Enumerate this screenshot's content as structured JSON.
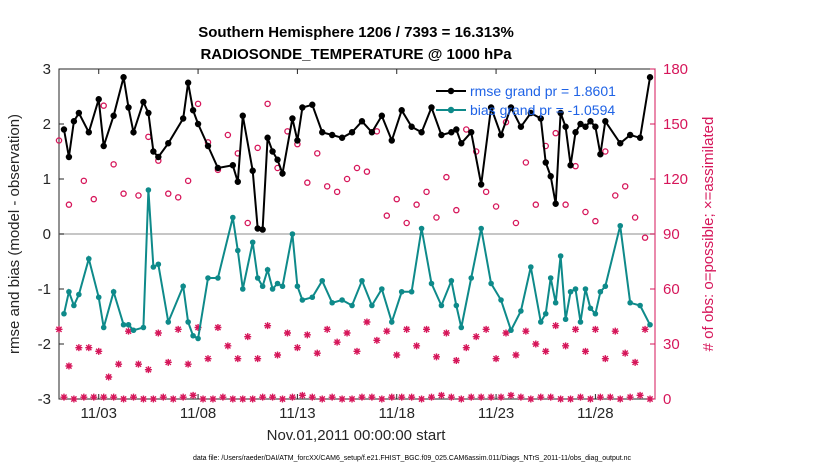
{
  "chart_data": {
    "type": "line",
    "title_line1": "Southern Hemisphere 1206 / 7393 = 16.313%",
    "title_line2": "RADIOSONDE_TEMPERATURE @ 1000 hPa",
    "ylabel": "rmse and bias (model - observation)",
    "ylabel_right": "# of obs: o=possible; ×=assimilated",
    "xlabel": "Nov.01,2011 00:00:00 start",
    "footnote": "data file: /Users/raeder/DAI/ATM_forcXX/CAM6_setup/f.e21.FHIST_BGC.f09_025.CAM6assim.011/Diags_NTrS_2011-11/obs_diag_output.nc",
    "xlim": [
      1.0,
      31.0
    ],
    "ylim": [
      -3,
      3
    ],
    "ylim_right": [
      0,
      180
    ],
    "xticks": [
      3,
      8,
      13,
      18,
      23,
      28
    ],
    "xtick_labels": [
      "11/03",
      "11/08",
      "11/13",
      "11/18",
      "11/23",
      "11/28"
    ],
    "yticks": [
      -3,
      -2,
      -1,
      0,
      1,
      2,
      3
    ],
    "ytick_labels": [
      "-3",
      "-2",
      "-1",
      "0",
      "1",
      "2",
      "3"
    ],
    "yticks_right": [
      0,
      30,
      60,
      90,
      120,
      150,
      180
    ],
    "ytick_labels_right": [
      "0",
      "30",
      "60",
      "90",
      "120",
      "150",
      "180"
    ],
    "colors": {
      "rmse": "#000000",
      "bias": "#0e8a8a",
      "obs": "#d6165a",
      "legend_text": "#1f63e6",
      "zero_line": "#b4b4b4"
    },
    "series": [
      {
        "name": "rmse grand pr = 1.8601",
        "key": "rmse",
        "x": [
          1.25,
          1.5,
          1.75,
          2.0,
          2.5,
          3.0,
          3.25,
          3.75,
          4.25,
          4.5,
          4.75,
          5.25,
          5.5,
          5.75,
          6.0,
          6.5,
          7.25,
          7.5,
          7.75,
          8.0,
          8.5,
          9.0,
          9.75,
          10.0,
          10.25,
          10.75,
          11.0,
          11.25,
          11.5,
          11.75,
          12.0,
          12.25,
          12.75,
          13.0,
          13.25,
          13.75,
          14.25,
          14.75,
          15.25,
          15.75,
          16.25,
          16.75,
          17.25,
          17.75,
          18.25,
          18.75,
          19.25,
          19.75,
          20.25,
          20.75,
          21.0,
          21.25,
          21.75,
          22.25,
          22.75,
          23.25,
          23.75,
          24.25,
          24.75,
          25.25,
          25.5,
          25.75,
          26.0,
          26.25,
          26.5,
          26.75,
          27.0,
          27.25,
          27.5,
          27.75,
          28.0,
          28.25,
          28.5,
          29.25,
          29.75,
          30.25,
          30.75
        ],
        "values": [
          1.9,
          1.4,
          2.05,
          2.2,
          1.85,
          2.45,
          1.6,
          2.15,
          2.85,
          2.3,
          1.85,
          2.4,
          2.2,
          1.5,
          1.4,
          1.65,
          2.1,
          2.75,
          2.25,
          2.0,
          1.6,
          1.2,
          1.25,
          0.95,
          2.15,
          1.15,
          0.1,
          0.08,
          1.75,
          1.5,
          1.35,
          1.1,
          2.1,
          1.7,
          2.3,
          2.35,
          1.85,
          1.8,
          1.75,
          1.85,
          2.05,
          1.85,
          2.15,
          1.7,
          2.25,
          1.95,
          1.85,
          2.3,
          1.8,
          1.85,
          1.9,
          1.65,
          1.85,
          0.9,
          2.3,
          1.8,
          2.3,
          1.95,
          2.2,
          2.1,
          1.3,
          1.05,
          0.55,
          2.2,
          1.95,
          1.25,
          1.85,
          2.0,
          1.95,
          2.05,
          1.95,
          1.45,
          2.05,
          1.65,
          1.8,
          1.75,
          2.85
        ]
      },
      {
        "name": "bias grand pr = -1.0594",
        "key": "bias",
        "x": [
          1.25,
          1.5,
          1.75,
          2.0,
          2.5,
          3.0,
          3.25,
          3.75,
          4.25,
          4.5,
          4.75,
          5.25,
          5.5,
          5.75,
          6.0,
          6.5,
          7.25,
          7.5,
          7.75,
          8.0,
          8.5,
          9.0,
          9.75,
          10.0,
          10.25,
          10.75,
          11.0,
          11.25,
          11.5,
          11.75,
          12.0,
          12.25,
          12.75,
          13.0,
          13.25,
          13.75,
          14.25,
          14.75,
          15.25,
          15.75,
          16.25,
          16.75,
          17.25,
          17.75,
          18.25,
          18.75,
          19.25,
          19.75,
          20.25,
          20.75,
          21.0,
          21.25,
          21.75,
          22.25,
          22.75,
          23.25,
          23.75,
          24.25,
          24.75,
          25.25,
          25.5,
          25.75,
          26.0,
          26.25,
          26.5,
          26.75,
          27.0,
          27.25,
          27.5,
          27.75,
          28.0,
          28.25,
          28.5,
          29.25,
          29.75,
          30.25,
          30.75
        ],
        "values": [
          -1.45,
          -1.05,
          -1.3,
          -1.1,
          -0.45,
          -1.15,
          -1.7,
          -1.05,
          -1.65,
          -1.65,
          -1.75,
          -1.7,
          0.8,
          -0.6,
          -0.55,
          -1.6,
          -0.95,
          -1.6,
          -1.85,
          -1.9,
          -0.8,
          -0.8,
          0.3,
          -0.3,
          -1.0,
          -0.15,
          -0.8,
          -0.95,
          -0.65,
          -1.0,
          -0.9,
          -0.95,
          0.0,
          -0.95,
          -1.2,
          -1.15,
          -0.85,
          -1.25,
          -1.2,
          -1.3,
          -0.85,
          -1.3,
          -1.0,
          -1.6,
          -1.05,
          -1.05,
          0.1,
          -0.9,
          -1.3,
          -0.85,
          -1.3,
          -1.7,
          -0.8,
          0.1,
          -0.9,
          -1.2,
          -1.75,
          -1.4,
          -0.6,
          -1.6,
          -1.45,
          -0.8,
          -1.25,
          -0.4,
          -1.55,
          -1.05,
          -1.0,
          -1.6,
          -1.0,
          -1.35,
          -1.45,
          -1.05,
          -0.95,
          0.15,
          -1.25,
          -1.3,
          -1.65
        ]
      }
    ],
    "obs_possible": {
      "x": [
        1.0,
        1.5,
        2.25,
        2.75,
        3.25,
        3.75,
        4.25,
        5.0,
        5.5,
        6.0,
        6.5,
        7.0,
        7.5,
        8.0,
        8.5,
        9.0,
        9.5,
        10.0,
        10.5,
        11.0,
        11.5,
        12.0,
        12.5,
        13.0,
        13.5,
        14.0,
        14.5,
        15.0,
        15.5,
        16.0,
        16.5,
        17.0,
        17.5,
        18.0,
        18.5,
        19.0,
        19.5,
        20.0,
        20.5,
        21.0,
        21.5,
        22.0,
        22.5,
        23.0,
        23.5,
        24.0,
        24.5,
        25.0,
        25.5,
        26.0,
        26.5,
        27.0,
        27.5,
        28.0,
        28.5,
        29.0,
        29.5,
        30.0,
        30.5
      ],
      "values": [
        141,
        106,
        119,
        109,
        160,
        128,
        112,
        111,
        143,
        130,
        112,
        110,
        119,
        161,
        140,
        125,
        144,
        134,
        96,
        137,
        161,
        126,
        146,
        139,
        118,
        134,
        116,
        113,
        120,
        126,
        124,
        146,
        100,
        109,
        96,
        106,
        113,
        99,
        121,
        103,
        147,
        135,
        113,
        105,
        151,
        96,
        129,
        106,
        138,
        145,
        106,
        127,
        102,
        97,
        135,
        111,
        116,
        99,
        88
      ]
    },
    "obs_assimilated": {
      "x": [
        1.0,
        1.25,
        1.5,
        1.75,
        2.0,
        2.25,
        2.5,
        2.75,
        3.0,
        3.25,
        3.5,
        3.75,
        4.0,
        4.25,
        4.5,
        4.75,
        5.0,
        5.25,
        5.5,
        5.75,
        6.0,
        6.25,
        6.5,
        6.75,
        7.0,
        7.25,
        7.5,
        7.75,
        8.0,
        8.25,
        8.5,
        8.75,
        9.0,
        9.25,
        9.5,
        9.75,
        10.0,
        10.25,
        10.5,
        10.75,
        11.0,
        11.25,
        11.5,
        11.75,
        12.0,
        12.25,
        12.5,
        12.75,
        13.0,
        13.25,
        13.5,
        13.75,
        14.0,
        14.25,
        14.5,
        14.75,
        15.0,
        15.25,
        15.5,
        15.75,
        16.0,
        16.25,
        16.5,
        16.75,
        17.0,
        17.25,
        17.5,
        17.75,
        18.0,
        18.25,
        18.5,
        18.75,
        19.0,
        19.25,
        19.5,
        19.75,
        20.0,
        20.25,
        20.5,
        20.75,
        21.0,
        21.25,
        21.5,
        21.75,
        22.0,
        22.25,
        22.5,
        22.75,
        23.0,
        23.25,
        23.5,
        23.75,
        24.0,
        24.25,
        24.5,
        24.75,
        25.0,
        25.25,
        25.5,
        25.75,
        26.0,
        26.25,
        26.5,
        26.75,
        27.0,
        27.25,
        27.5,
        27.75,
        28.0,
        28.25,
        28.5,
        28.75,
        29.0,
        29.25,
        29.5,
        29.75,
        30.0,
        30.25,
        30.5,
        30.75
      ],
      "values": [
        38,
        1,
        18,
        0,
        28,
        1,
        28,
        1,
        26,
        1,
        12,
        1,
        19,
        0,
        37,
        1,
        19,
        0,
        16,
        0,
        36,
        1,
        20,
        0,
        38,
        1,
        19,
        2,
        39,
        0,
        22,
        0,
        39,
        1,
        29,
        0,
        22,
        0,
        34,
        0,
        22,
        1,
        40,
        1,
        24,
        0,
        36,
        1,
        28,
        2,
        35,
        1,
        25,
        0,
        38,
        1,
        31,
        0,
        36,
        0,
        26,
        1,
        42,
        1,
        32,
        0,
        37,
        1,
        24,
        1,
        38,
        1,
        29,
        0,
        38,
        1,
        23,
        2,
        36,
        1,
        21,
        0,
        28,
        1,
        34,
        1,
        38,
        1,
        22,
        1,
        36,
        2,
        24,
        1,
        37,
        0,
        30,
        1,
        26,
        1,
        40,
        0,
        29,
        0,
        38,
        1,
        26,
        0,
        38,
        1,
        22,
        1,
        37,
        0,
        25,
        1,
        20,
        2,
        38,
        0
      ]
    }
  }
}
